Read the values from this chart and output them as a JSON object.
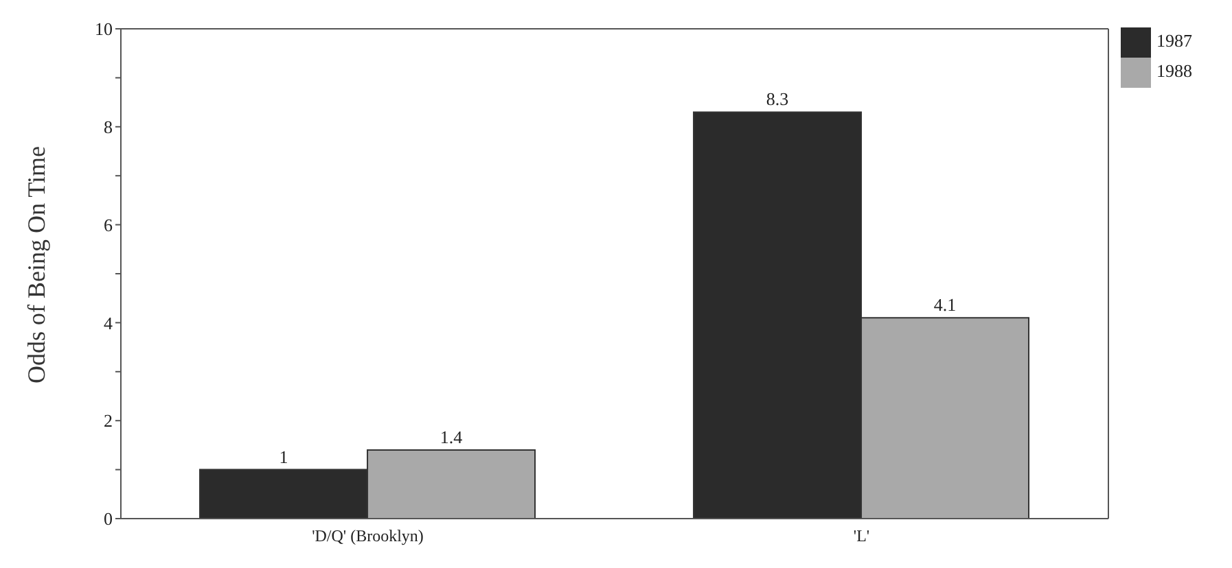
{
  "chart_data": {
    "type": "bar",
    "ylabel": "Odds of Being On Time",
    "categories": [
      "'D/Q' (Brooklyn)",
      "'L'"
    ],
    "series": [
      {
        "name": "1987",
        "color": "#2b2b2b",
        "values": [
          1,
          8.3
        ]
      },
      {
        "name": "1988",
        "color": "#a9a9a9",
        "values": [
          1.4,
          4.1
        ]
      }
    ],
    "ylim": [
      0,
      10
    ],
    "yticks": [
      0,
      {
        "value": 1,
        "label": null
      },
      2,
      {
        "value": 3,
        "label": null
      },
      4,
      {
        "value": 5,
        "label": null
      },
      6,
      {
        "value": 7,
        "label": null
      },
      8,
      {
        "value": 9,
        "label": null
      },
      10
    ],
    "data_labels": true,
    "grid": false,
    "legend": "top right"
  }
}
